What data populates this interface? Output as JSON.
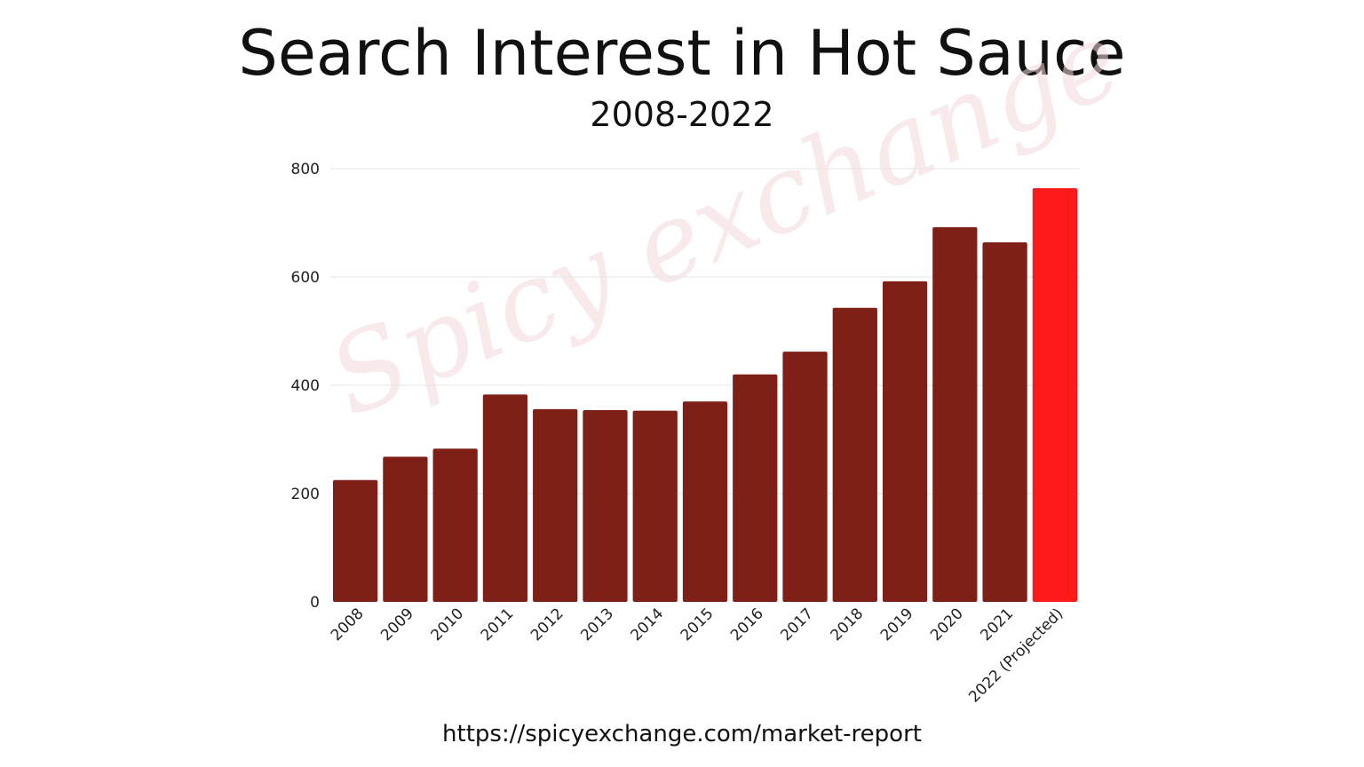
{
  "title": "Search Interest in Hot Sauce",
  "subtitle": "2008-2022",
  "source_url": "https://spicyexchange.com/market-report",
  "watermark": "Spicy exchange",
  "colors": {
    "bar": "#7f2018",
    "highlight": "#ff1a1a",
    "grid": "#e6e6e6"
  },
  "chart_data": {
    "type": "bar",
    "categories": [
      "2008",
      "2009",
      "2010",
      "2011",
      "2012",
      "2013",
      "2014",
      "2015",
      "2016",
      "2017",
      "2018",
      "2019",
      "2020",
      "2021",
      "2022 (Projected)"
    ],
    "values": [
      225,
      268,
      283,
      383,
      356,
      354,
      353,
      370,
      420,
      462,
      543,
      592,
      692,
      664,
      764
    ],
    "highlight_index": 14,
    "ylim": [
      0,
      800
    ],
    "yticks": [
      0,
      200,
      400,
      600,
      800
    ],
    "grid": true,
    "legend": "none"
  }
}
